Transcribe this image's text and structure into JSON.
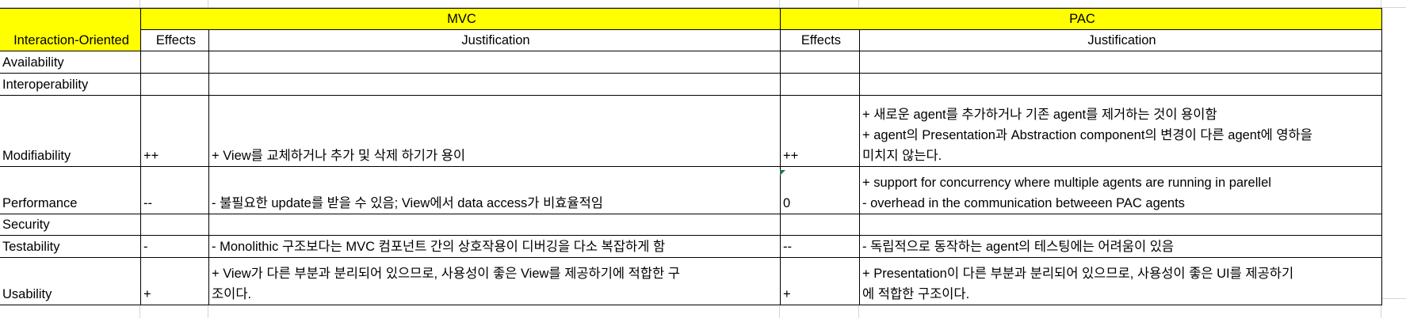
{
  "header": {
    "corner": "Interaction-Oriented",
    "groups": [
      "MVC",
      "PAC"
    ],
    "subheaders": [
      "Effects",
      "Justification",
      "Effects",
      "Justification"
    ]
  },
  "rows": [
    {
      "attribute": "Availability",
      "mvc_effect": "",
      "mvc_lines": [],
      "pac_effect": "",
      "pac_lines": []
    },
    {
      "attribute": "Interoperability",
      "mvc_effect": "",
      "mvc_lines": [],
      "pac_effect": "",
      "pac_lines": []
    },
    {
      "attribute": "Modifiability",
      "mvc_effect": "++",
      "mvc_lines": [
        "+ View를 교체하거나 추가 및 삭제 하기가 용이"
      ],
      "pac_effect": "++",
      "pac_lines": [
        "+ 새로운 agent를 추가하거나 기존 agent를 제거하는 것이 용이함",
        "+ agent의 Presentation과 Abstraction component의 변경이 다른 agent에 영하을",
        "미치지 않는다."
      ]
    },
    {
      "attribute": "Performance",
      "mvc_effect": "--",
      "mvc_lines": [
        "- 불필요한 update를 받을 수 있음; View에서 data access가 비효율적임"
      ],
      "pac_effect": "0",
      "pac_lines": [
        "+ support for concurrency where multiple agents are running in parellel",
        "- overhead in the communication betweeen PAC agents"
      ]
    },
    {
      "attribute": "Security",
      "mvc_effect": "",
      "mvc_lines": [],
      "pac_effect": "",
      "pac_lines": []
    },
    {
      "attribute": "Testability",
      "mvc_effect": "-",
      "mvc_lines": [
        "- Monolithic 구조보다는 MVC 컴포넌트 간의 상호작용이 디버깅을 다소 복잡하게 함"
      ],
      "pac_effect": "--",
      "pac_lines": [
        "-  독립적으로 동작하는 agent의 테스팅에는 어려움이 있음"
      ]
    },
    {
      "attribute": "Usability",
      "mvc_effect": "+",
      "mvc_lines": [
        "+ View가 다른 부분과 분리되어 있으므로, 사용성이 좋은 View를 제공하기에 적합한 구",
        "조이다."
      ],
      "pac_effect": "+",
      "pac_lines": [
        "+ Presentation이 다른 부분과 분리되어 있으므로, 사용성이 좋은 UI를 제공하기",
        "에 적합한 구조이다."
      ]
    }
  ],
  "colors": {
    "header_fill": "#ffff00",
    "comment_marker": "#217346",
    "gridline": "#d4d4d4"
  }
}
